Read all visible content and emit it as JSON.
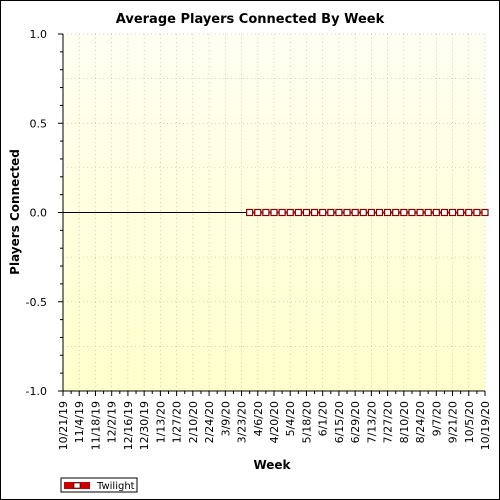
{
  "chart_data": {
    "type": "line",
    "title": "Average Players Connected By Week",
    "xlabel": "Week",
    "ylabel": "Players Connected",
    "ylim": [
      -1.0,
      1.0
    ],
    "yticks": [
      -1.0,
      -0.5,
      0.0,
      0.5,
      1.0
    ],
    "ytick_labels": [
      "-1.0",
      "-0.5",
      "0.0",
      "0.5",
      "1.0"
    ],
    "x_tick_labels": [
      "10/21/19",
      "11/4/19",
      "11/18/19",
      "12/2/19",
      "12/16/19",
      "12/30/19",
      "1/13/20",
      "1/27/20",
      "2/10/20",
      "2/24/20",
      "3/9/20",
      "3/23/20",
      "4/6/20",
      "4/20/20",
      "5/4/20",
      "5/18/20",
      "6/1/20",
      "6/15/20",
      "6/29/20",
      "7/13/20",
      "7/27/20",
      "8/10/20",
      "8/24/20",
      "9/7/20",
      "9/21/20",
      "10/5/20",
      "10/19/20"
    ],
    "grid": true,
    "legend_position": "bottom-left",
    "series": [
      {
        "name": "Twilight",
        "color": "#cc0000",
        "x": [
          "3/30/20",
          "4/6/20",
          "4/13/20",
          "4/20/20",
          "4/27/20",
          "5/4/20",
          "5/11/20",
          "5/18/20",
          "5/25/20",
          "6/1/20",
          "6/8/20",
          "6/15/20",
          "6/22/20",
          "6/29/20",
          "7/6/20",
          "7/13/20",
          "7/20/20",
          "7/27/20",
          "8/3/20",
          "8/10/20",
          "8/17/20",
          "8/24/20",
          "8/31/20",
          "9/7/20",
          "9/14/20",
          "9/21/20",
          "9/28/20",
          "10/5/20",
          "10/12/20",
          "10/19/20"
        ],
        "values": [
          0,
          0,
          0,
          0,
          0,
          0,
          0,
          0,
          0,
          0,
          0,
          0,
          0,
          0,
          0,
          0,
          0,
          0,
          0,
          0,
          0,
          0,
          0,
          0,
          0,
          0,
          0,
          0,
          0,
          0
        ]
      }
    ],
    "colors": {
      "plot_bg_top": "#fffff0",
      "plot_bg_bottom": "#ffffcc",
      "grid": "#b4b4a0",
      "line": "#000000"
    }
  }
}
